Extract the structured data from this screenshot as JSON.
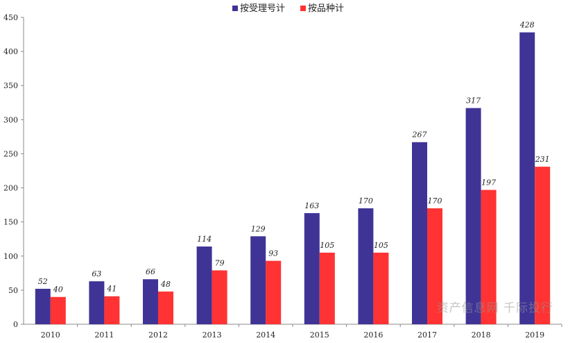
{
  "chart_data": {
    "type": "bar",
    "categories": [
      "2010",
      "2011",
      "2012",
      "2013",
      "2014",
      "2015",
      "2016",
      "2017",
      "2018",
      "2019"
    ],
    "series": [
      {
        "name": "按受理号计",
        "color": "#3f3496",
        "values": [
          52,
          63,
          66,
          114,
          129,
          163,
          170,
          267,
          317,
          428
        ]
      },
      {
        "name": "按品种计",
        "color": "#ff3333",
        "values": [
          40,
          41,
          48,
          79,
          93,
          105,
          105,
          170,
          197,
          231
        ]
      }
    ],
    "ylim": [
      0,
      450
    ],
    "yticks": [
      0,
      50,
      100,
      150,
      200,
      250,
      300,
      350,
      400,
      450
    ],
    "title": "",
    "xlabel": "",
    "ylabel": "",
    "legend": "top-center",
    "grid": false
  },
  "watermark": "资产信息网 千际投行"
}
